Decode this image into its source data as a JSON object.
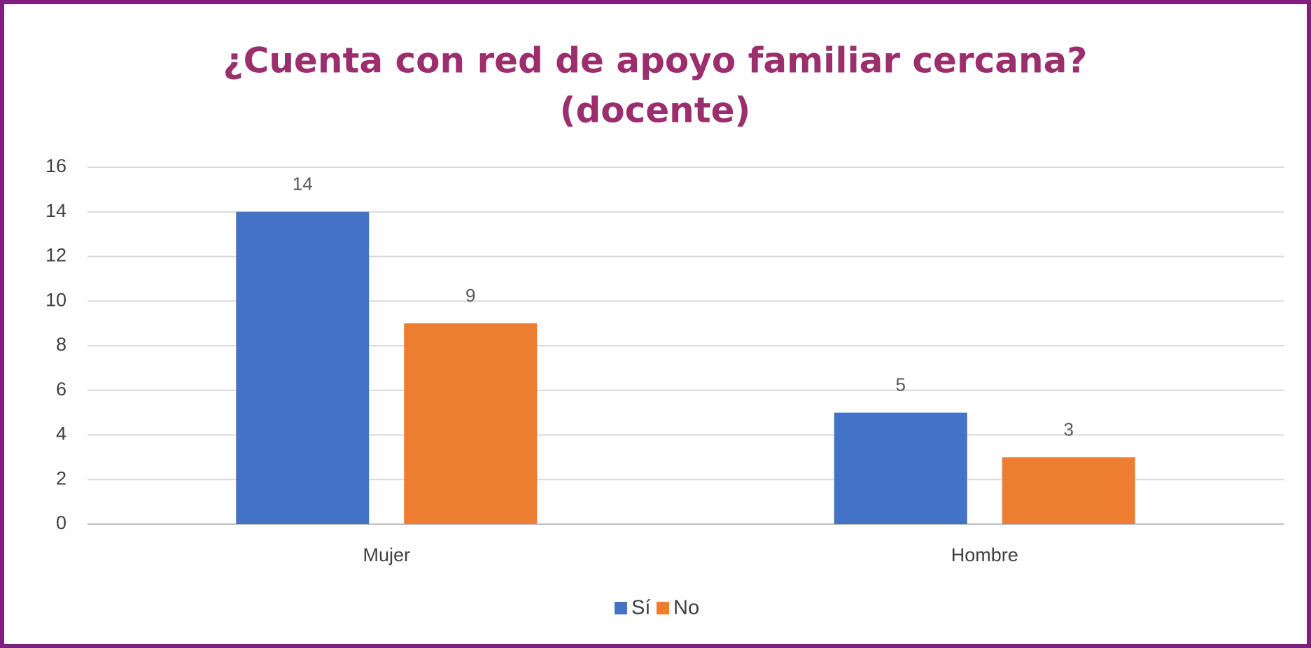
{
  "chart_data": {
    "type": "bar",
    "title": [
      "¿Cuenta con red de apoyo familiar cercana?",
      "(docente)"
    ],
    "categories": [
      "Mujer",
      "Hombre"
    ],
    "series": [
      {
        "name": "Sí",
        "color": "#4472c4",
        "values": [
          14,
          5
        ]
      },
      {
        "name": "No",
        "color": "#ed7d31",
        "values": [
          9,
          3
        ]
      }
    ],
    "ylim": [
      0,
      16
    ],
    "yticks": [
      0,
      2,
      4,
      6,
      8,
      10,
      12,
      14,
      16
    ],
    "grid": true,
    "legend": "bottom"
  }
}
